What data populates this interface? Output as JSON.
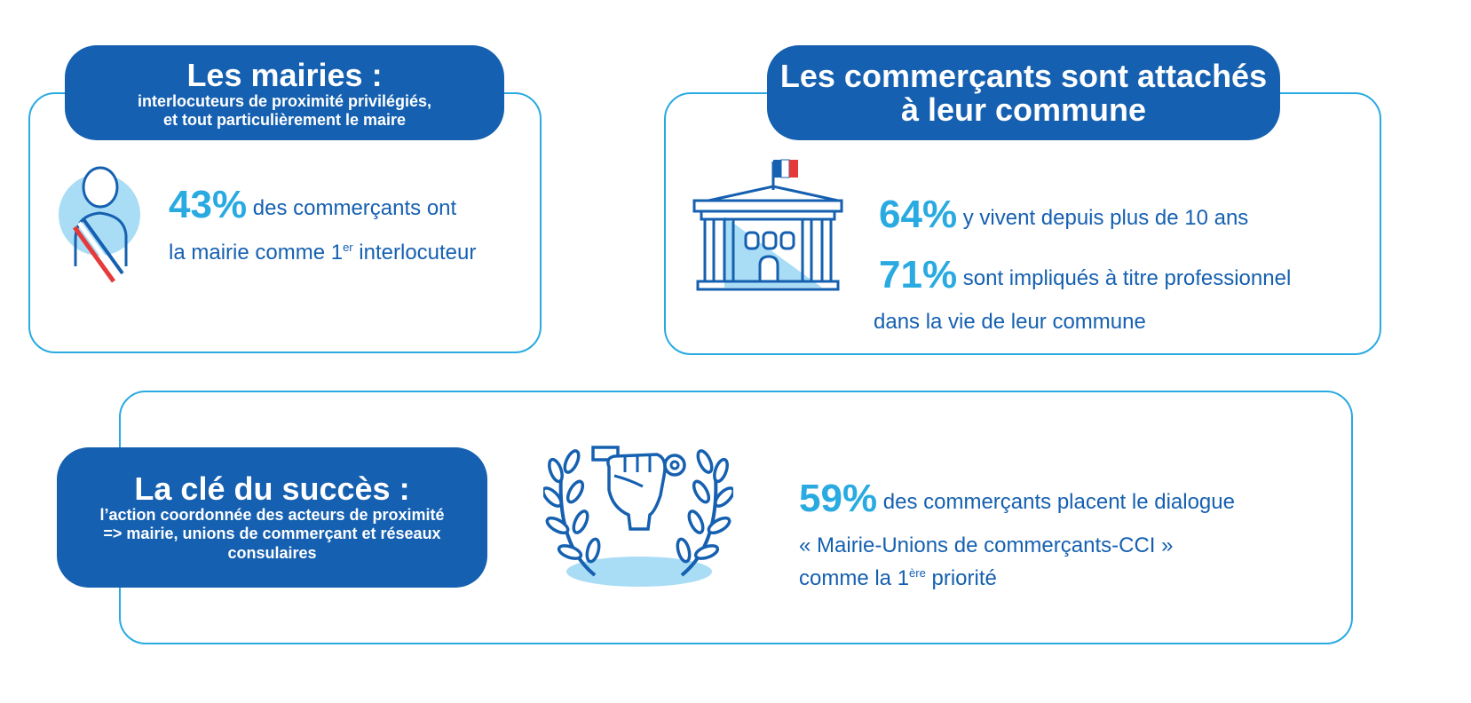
{
  "mairies": {
    "title": "Les mairies :",
    "subtitle_line1": "interlocuteurs de proximité privilégiés,",
    "subtitle_line2": "et tout particulièrement le maire",
    "stat_pct": "43%",
    "stat_text1": " des commerçants ont",
    "stat_text2a": "la mairie comme 1",
    "stat_sup": "er",
    "stat_text2b": " interlocuteur",
    "icon": "mayor-sash-icon"
  },
  "commune": {
    "title_line1": "Les commerçants sont attachés",
    "title_line2": "à leur commune",
    "stat1_pct": "64%",
    "stat1_text": " y vivent depuis plus de 10 ans",
    "stat2_pct": "71%",
    "stat2_text": " sont impliqués à titre professionnel",
    "stat2_text2": "dans la vie de leur commune",
    "icon": "town-hall-icon"
  },
  "succes": {
    "title": "La clé du succès :",
    "subtitle_line1": "l’action coordonnée des acteurs de proximité",
    "subtitle_line2": "=> mairie, unions de commerçant et réseaux",
    "subtitle_line3": "consulaires",
    "stat_pct": "59%",
    "stat_text1": " des commerçants placent le dialogue",
    "stat_text2": "« Mairie-Unions de commerçants-CCI »",
    "stat_text3a": "comme la 1",
    "stat_sup": "ère",
    "stat_text3b": " priorité",
    "icon": "fist-key-laurel-icon"
  },
  "colors": {
    "dark_blue": "#1560b0",
    "light_blue": "#29aae1",
    "pale_blue": "#a9dcf5",
    "red": "#e63a3a"
  }
}
